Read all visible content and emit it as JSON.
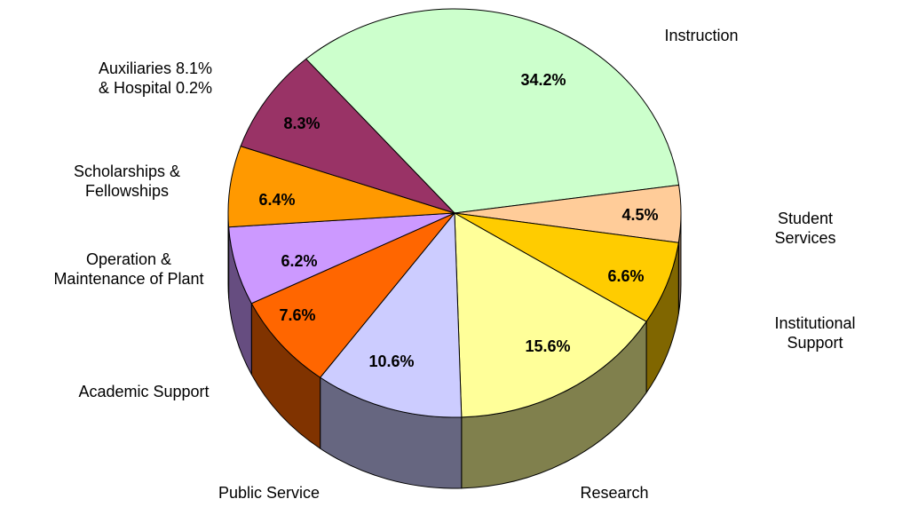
{
  "chart_data": {
    "type": "pie",
    "categories": [
      "Instruction",
      "Student Services",
      "Institutional Support",
      "Research",
      "Public Service",
      "Academic Support",
      "Operation &\nMaintenance of Plant",
      "Scholarships &\nFellowships",
      "Auxiliaries 8.1%\n& Hospital 0.2%"
    ],
    "values": [
      34.2,
      4.5,
      6.6,
      15.6,
      10.6,
      7.6,
      6.2,
      6.4,
      8.3
    ],
    "value_labels": [
      "34.2%",
      "4.5%",
      "6.6%",
      "15.6%",
      "10.6%",
      "7.6%",
      "6.2%",
      "6.4%",
      "8.3%"
    ],
    "colors": [
      "#ccffcc",
      "#ffcc99",
      "#ffcc00",
      "#ffff99",
      "#ccccff",
      "#ff6600",
      "#cc99ff",
      "#ff9900",
      "#993366"
    ]
  }
}
